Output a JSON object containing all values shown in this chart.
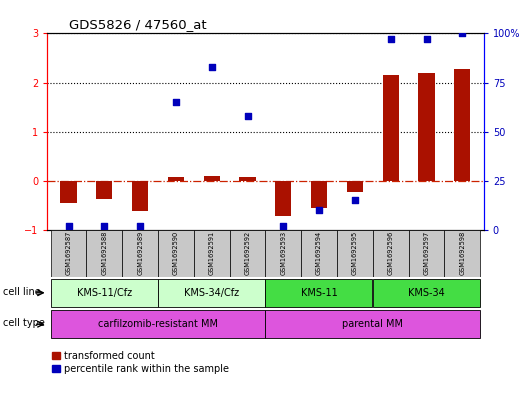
{
  "title": "GDS5826 / 47560_at",
  "samples": [
    "GSM1692587",
    "GSM1692588",
    "GSM1692589",
    "GSM1692590",
    "GSM1692591",
    "GSM1692592",
    "GSM1692593",
    "GSM1692594",
    "GSM1692595",
    "GSM1692596",
    "GSM1692597",
    "GSM1692598"
  ],
  "transformed_count": [
    -0.45,
    -0.38,
    -0.62,
    0.07,
    0.1,
    0.08,
    -0.72,
    -0.55,
    -0.22,
    2.15,
    2.2,
    2.28
  ],
  "percentile_rank": [
    2,
    2,
    2,
    65,
    83,
    58,
    2,
    10,
    15,
    97,
    97,
    100
  ],
  "cell_line_groups": [
    {
      "label": "KMS-11/Cfz",
      "start": 0,
      "end": 3,
      "color": "#ccffcc"
    },
    {
      "label": "KMS-34/Cfz",
      "start": 3,
      "end": 6,
      "color": "#ccffcc"
    },
    {
      "label": "KMS-11",
      "start": 6,
      "end": 9,
      "color": "#44dd44"
    },
    {
      "label": "KMS-34",
      "start": 9,
      "end": 12,
      "color": "#44dd44"
    }
  ],
  "cell_type_carfilzomib_color": "#ee66ee",
  "cell_type_parental_color": "#ee66ee",
  "cell_type_groups": [
    {
      "label": "carfilzomib-resistant MM",
      "start": 0,
      "end": 6,
      "color": "#ee66ee"
    },
    {
      "label": "parental MM",
      "start": 6,
      "end": 12,
      "color": "#ee66ee"
    }
  ],
  "ylim_left": [
    -1,
    3
  ],
  "ylim_right": [
    0,
    100
  ],
  "bar_color": "#aa1100",
  "dot_color": "#0000bb",
  "hline_color": "#cc2200",
  "bg_color": "#ffffff",
  "bar_width": 0.45,
  "right_yticks": [
    0,
    25,
    50,
    75,
    100
  ],
  "right_yticklabels": [
    "0",
    "25",
    "50",
    "75",
    "100%"
  ],
  "left_yticks": [
    -1,
    0,
    1,
    2,
    3
  ]
}
